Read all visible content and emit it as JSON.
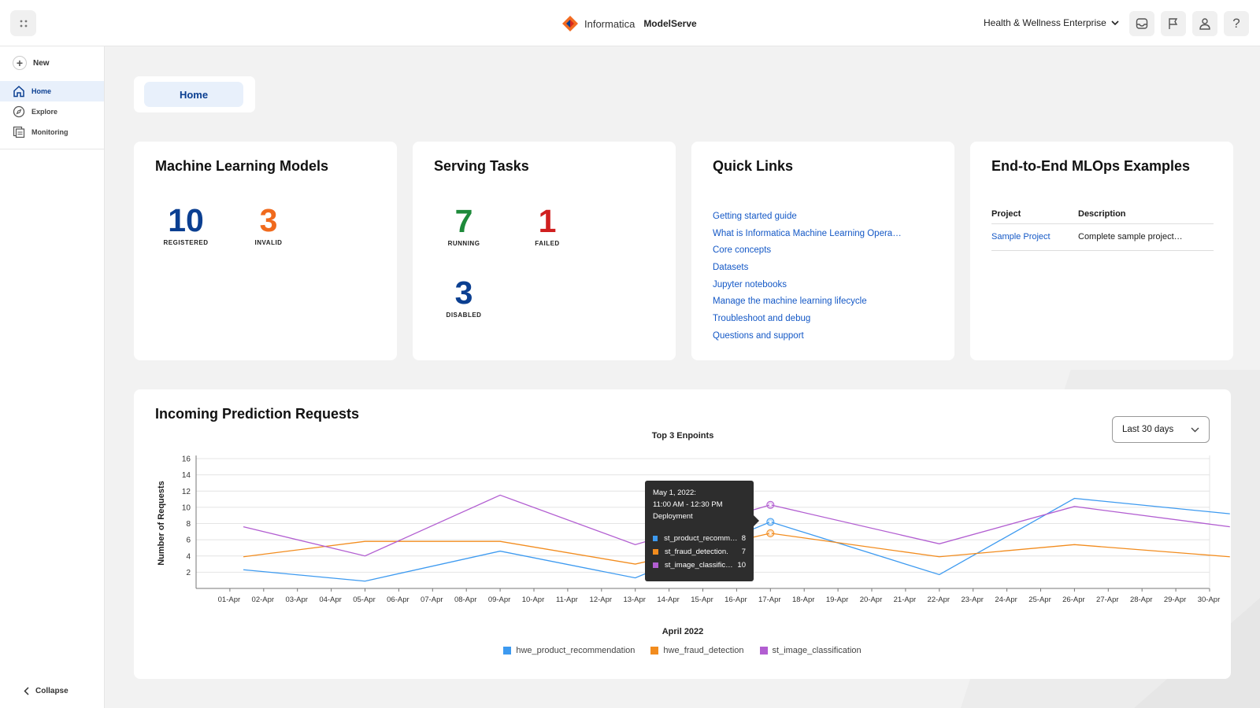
{
  "header": {
    "brand_name": "Informatica",
    "product_name": "ModelServe",
    "org": "Health & Wellness Enterprise"
  },
  "sidebar": {
    "new_label": "New",
    "items": [
      {
        "label": "Home",
        "icon": "home-icon"
      },
      {
        "label": "Explore",
        "icon": "compass-icon"
      },
      {
        "label": "Monitoring",
        "icon": "monitor-icon"
      }
    ],
    "collapse_label": "Collapse"
  },
  "tab": {
    "label": "Home"
  },
  "cards": {
    "ml_models": {
      "title": "Machine Learning Models",
      "registered": {
        "value": "10",
        "label": "REGISTERED",
        "color": "#0b3f91"
      },
      "invalid": {
        "value": "3",
        "label": "INVALID",
        "color": "#f06a1d"
      }
    },
    "serving_tasks": {
      "title": "Serving Tasks",
      "running": {
        "value": "7",
        "label": "RUNNING",
        "color": "#1e8a3a"
      },
      "failed": {
        "value": "1",
        "label": "FAILED",
        "color": "#d01f1f"
      },
      "disabled": {
        "value": "3",
        "label": "DISABLED",
        "color": "#0b3f91"
      }
    },
    "quick_links": {
      "title": "Quick Links",
      "links": [
        "Getting started guide",
        "What is Informatica Machine Learning Opera…",
        "Core concepts",
        "Datasets",
        "Jupyter notebooks",
        "Manage the machine learning lifecycle",
        "Troubleshoot and debug",
        "Questions and support"
      ]
    },
    "mlops": {
      "title": "End-to-End MLOps Examples",
      "col_project": "Project",
      "col_description": "Description",
      "rows": [
        {
          "project": "Sample Project",
          "description": "Complete sample project…"
        }
      ]
    }
  },
  "chart_section": {
    "title": "Incoming Prediction Requests",
    "range": "Last 30 days",
    "tooltip": {
      "date": "May 1, 2022:",
      "time": "11:00 AM - 12:30 PM",
      "type": "Deployment",
      "rows": [
        {
          "name": "st_product_recomm…",
          "value": "8",
          "color": "#3d9af0"
        },
        {
          "name": "st_fraud_detection.",
          "value": "7",
          "color": "#f28c1e"
        },
        {
          "name": "st_image_classific…",
          "value": "10",
          "color": "#b25ed1"
        }
      ]
    }
  },
  "chart_data": {
    "type": "line",
    "title": "Top 3 Enpoints",
    "xlabel": "April 2022",
    "ylabel": "Number of Requests",
    "ylim": [
      0,
      16
    ],
    "yticks": [
      2,
      4,
      6,
      8,
      10,
      12,
      14,
      16
    ],
    "categories": [
      "01-Apr",
      "02-Apr",
      "03-Apr",
      "04-Apr",
      "05-Apr",
      "06-Apr",
      "07-Apr",
      "08-Apr",
      "09-Apr",
      "10-Apr",
      "11-Apr",
      "12-Apr",
      "13-Apr",
      "14-Apr",
      "15-Apr",
      "16-Apr",
      "17-Apr",
      "18-Apr",
      "19-Apr",
      "20-Apr",
      "21-Apr",
      "22-Apr",
      "23-Apr",
      "24-Apr",
      "25-Apr",
      "26-Apr",
      "27-Apr",
      "28-Apr",
      "29-Apr",
      "30-Apr"
    ],
    "series": [
      {
        "name": "hwe_product_recommendation",
        "color": "#3d9af0",
        "points": [
          [
            0.4,
            2.3
          ],
          [
            4,
            0.9
          ],
          [
            8,
            4.6
          ],
          [
            12,
            1.3
          ],
          [
            16,
            8.2
          ],
          [
            21,
            1.7
          ],
          [
            25,
            11.1
          ],
          [
            29.6,
            9.2
          ]
        ]
      },
      {
        "name": "hwe_fraud_detection",
        "color": "#f28c1e",
        "points": [
          [
            0.4,
            3.9
          ],
          [
            4,
            5.8
          ],
          [
            8,
            5.8
          ],
          [
            12,
            3.0
          ],
          [
            16,
            6.8
          ],
          [
            21,
            3.9
          ],
          [
            25,
            5.4
          ],
          [
            29.6,
            3.9
          ]
        ]
      },
      {
        "name": "st_image_classification",
        "color": "#b25ed1",
        "points": [
          [
            0.4,
            7.6
          ],
          [
            4,
            4.0
          ],
          [
            8,
            11.5
          ],
          [
            12,
            5.4
          ],
          [
            16,
            10.3
          ],
          [
            21,
            5.5
          ],
          [
            25,
            10.1
          ],
          [
            29.6,
            7.6
          ]
        ]
      }
    ],
    "highlight_x": 16,
    "grid": true,
    "legend": "bottom-center"
  }
}
